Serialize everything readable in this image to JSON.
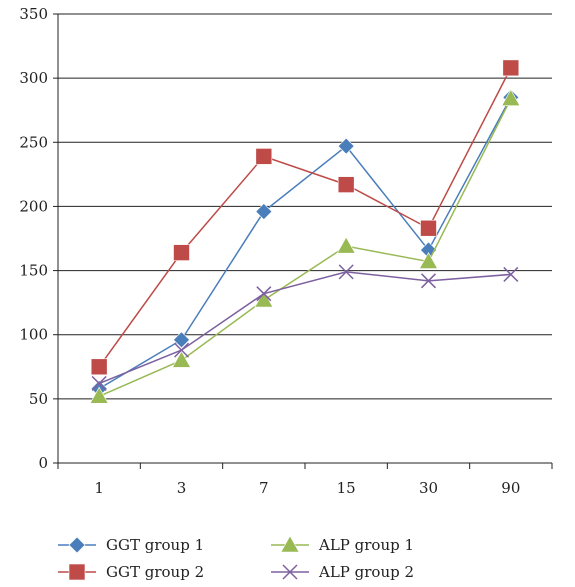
{
  "chart_data": {
    "type": "line",
    "title": "",
    "xlabel": "",
    "ylabel": "",
    "categories": [
      "1",
      "3",
      "7",
      "15",
      "30",
      "90"
    ],
    "ylim": [
      0,
      350
    ],
    "yticks": [
      0,
      50,
      100,
      150,
      200,
      250,
      300,
      350
    ],
    "grid": true,
    "legend_position": "bottom",
    "series": [
      {
        "name": "GGT group 1",
        "values": [
          58,
          96,
          196,
          247,
          166,
          285
        ],
        "color": "#4a7ebb",
        "marker": "diamond"
      },
      {
        "name": "GGT group 2",
        "values": [
          75,
          164,
          239,
          217,
          183,
          308
        ],
        "color": "#be4b48",
        "marker": "square"
      },
      {
        "name": "ALP group 1",
        "values": [
          52,
          80,
          127,
          169,
          157,
          284
        ],
        "color": "#98b954",
        "marker": "triangle"
      },
      {
        "name": "ALP group 2",
        "values": [
          62,
          88,
          132,
          149,
          142,
          147
        ],
        "color": "#7d60a0",
        "marker": "x"
      }
    ]
  }
}
